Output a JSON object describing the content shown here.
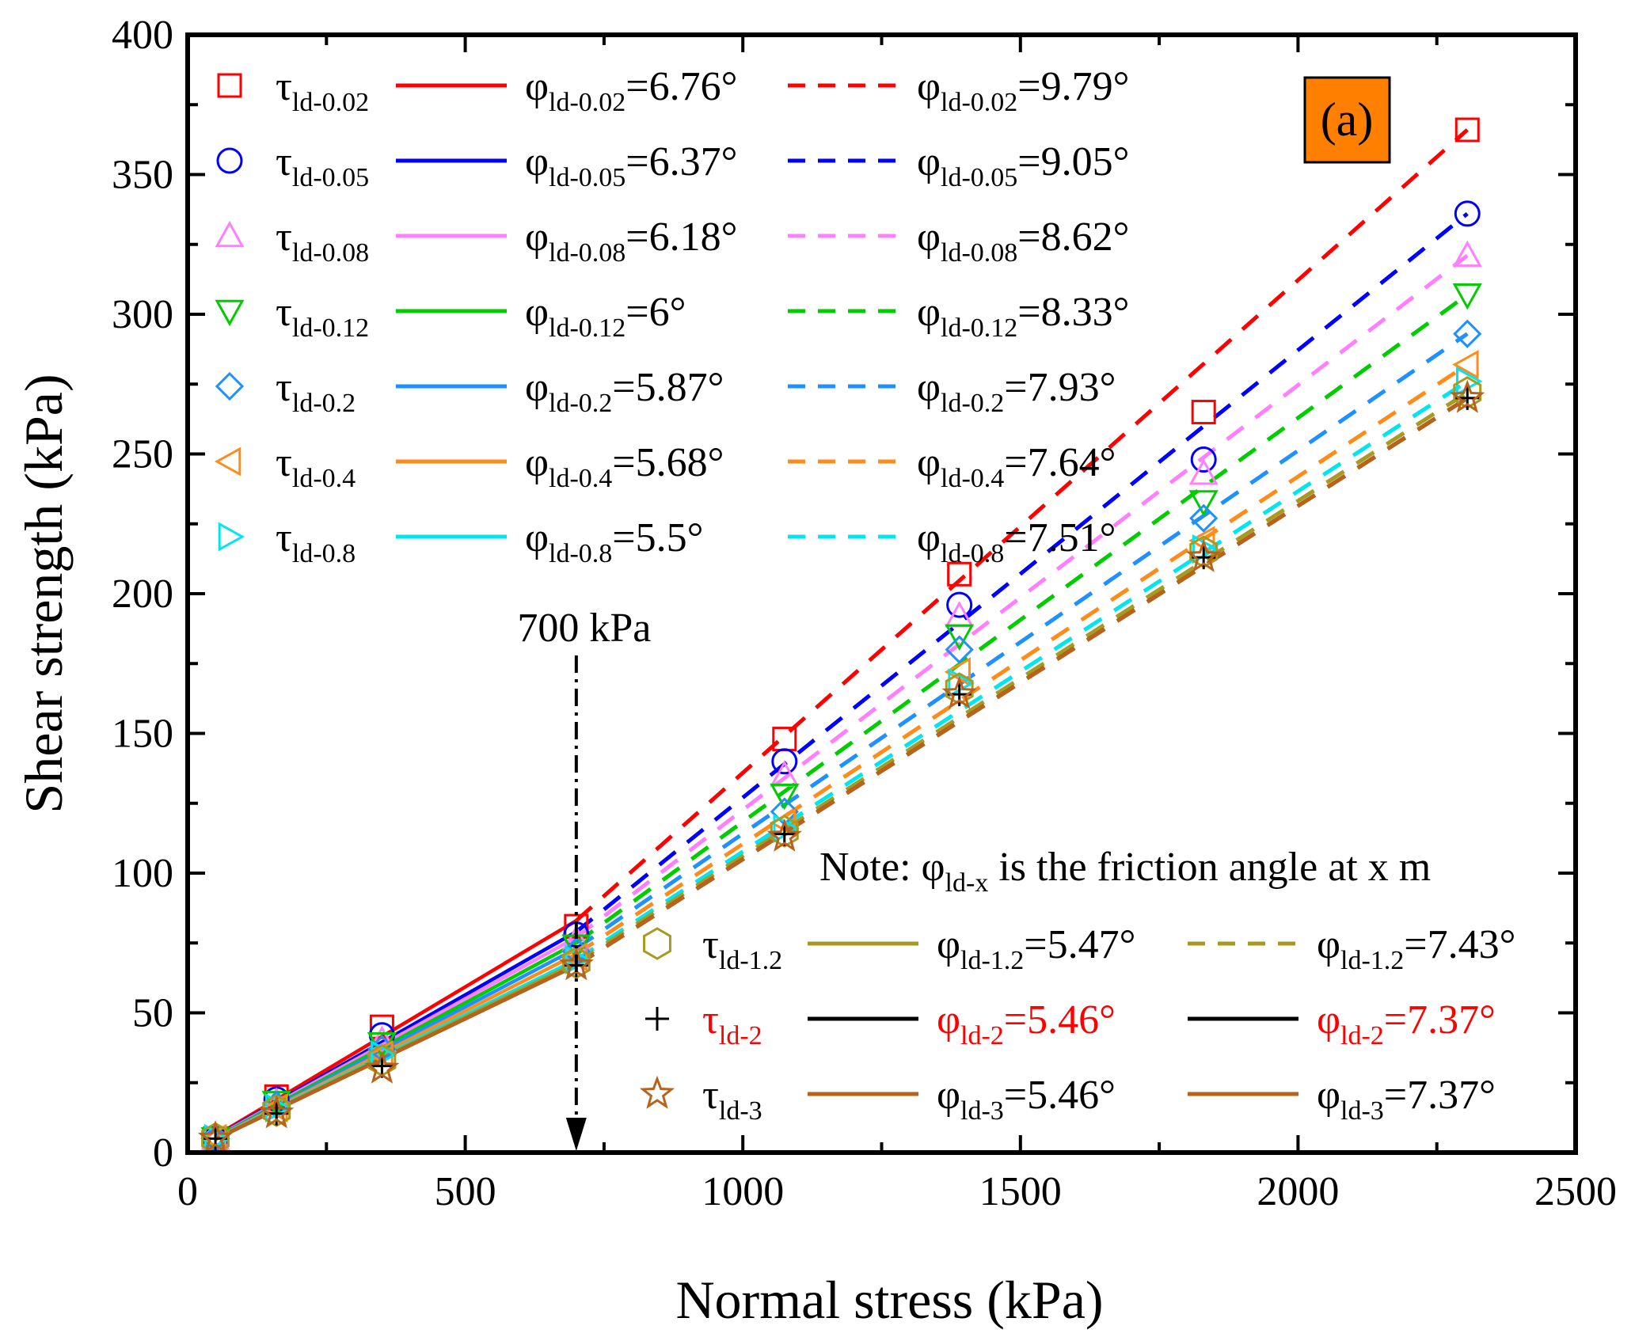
{
  "chart_data": {
    "type": "scatter",
    "panel_label": "(a)",
    "xlabel": "Normal stress (kPa)",
    "ylabel": "Shear strength (kPa)",
    "xlim": [
      0,
      2500
    ],
    "ylim": [
      0,
      400
    ],
    "x_ticks": [
      "0",
      "500",
      "1000",
      "1500",
      "2000",
      "2500"
    ],
    "y_ticks": [
      "0",
      "50",
      "100",
      "150",
      "200",
      "250",
      "300",
      "350",
      "400"
    ],
    "annotation": {
      "text": "700 kPa",
      "x": 700
    },
    "note": {
      "prefix": "Note: φ",
      "sub": "ld-x",
      "suffix": " is the friction angle at x m"
    },
    "x": [
      50,
      160,
      350,
      700,
      1075,
      1390,
      1830,
      2305
    ],
    "series": [
      {
        "name": "τld-0.02",
        "tau": "τ",
        "sub": "ld-0.02",
        "color": "#ff0000",
        "marker": "square",
        "values": [
          5,
          20,
          45,
          81,
          148,
          207,
          265,
          366
        ],
        "phi1": {
          "label": "=6.76°",
          "sub": "ld-0.02",
          "deg": 6.76,
          "y700": 83
        },
        "phi2": {
          "label": "=9.79°",
          "sub": "ld-0.02",
          "deg": 9.79
        }
      },
      {
        "name": "τld-0.05",
        "tau": "τ",
        "sub": "ld-0.05",
        "color": "#0000ff",
        "marker": "circle",
        "values": [
          5,
          19,
          42,
          78,
          140,
          196,
          248,
          336
        ],
        "phi1": {
          "label": "=6.37°",
          "sub": "ld-0.05",
          "deg": 6.37,
          "y700": 79
        },
        "phi2": {
          "label": "=9.05°",
          "sub": "ld-0.05",
          "deg": 9.05
        }
      },
      {
        "name": "τld-0.08",
        "tau": "τ",
        "sub": "ld-0.08",
        "color": "#ff7fff",
        "marker": "triangle-up",
        "values": [
          5,
          18,
          40,
          76,
          135,
          192,
          243,
          321
        ],
        "phi1": {
          "label": "=6.18°",
          "sub": "ld-0.08",
          "deg": 6.18,
          "y700": 77
        },
        "phi2": {
          "label": "=8.62°",
          "sub": "ld-0.08",
          "deg": 8.62
        }
      },
      {
        "name": "τld-0.12",
        "tau": "τ",
        "sub": "ld-0.12",
        "color": "#00cc00",
        "marker": "triangle-down",
        "values": [
          5,
          18,
          39,
          74,
          128,
          185,
          233,
          307
        ],
        "phi1": {
          "label": "=6°",
          "sub": "ld-0.12",
          "deg": 6.0,
          "y700": 75
        },
        "phi2": {
          "label": "=8.33°",
          "sub": "ld-0.12",
          "deg": 8.33
        }
      },
      {
        "name": "τld-0.2",
        "tau": "τ",
        "sub": "ld-0.2",
        "color": "#1e90ff",
        "marker": "diamond",
        "values": [
          5,
          17,
          37,
          72,
          122,
          180,
          227,
          293
        ],
        "phi1": {
          "label": "=5.87°",
          "sub": "ld-0.2",
          "deg": 5.87,
          "y700": 73
        },
        "phi2": {
          "label": "=7.93°",
          "sub": "ld-0.2",
          "deg": 7.93
        }
      },
      {
        "name": "τld-0.4",
        "tau": "τ",
        "sub": "ld-0.4",
        "color": "#ff8c1a",
        "marker": "triangle-left",
        "values": [
          5,
          16,
          35,
          70,
          118,
          172,
          219,
          282
        ],
        "phi1": {
          "label": "=5.68°",
          "sub": "ld-0.4",
          "deg": 5.68,
          "y700": 71
        },
        "phi2": {
          "label": "=7.64°",
          "sub": "ld-0.4",
          "deg": 7.64
        }
      },
      {
        "name": "τld-0.8",
        "tau": "τ",
        "sub": "ld-0.8",
        "color": "#00e5ee",
        "marker": "triangle-right",
        "values": [
          5,
          16,
          35,
          69,
          116,
          168,
          216,
          276
        ],
        "phi1": {
          "label": "=5.5°",
          "sub": "ld-0.8",
          "deg": 5.5,
          "y700": 69
        },
        "phi2": {
          "label": "=7.51°",
          "sub": "ld-0.8",
          "deg": 7.51
        }
      },
      {
        "name": "τld-1.2",
        "tau": "τ",
        "sub": "ld-1.2",
        "color": "#a89a20",
        "marker": "hexagon",
        "values": [
          5,
          15,
          33,
          68,
          115,
          166,
          215,
          272
        ],
        "phi1": {
          "label": "=5.47°",
          "sub": "ld-1.2",
          "deg": 5.47,
          "y700": 68
        },
        "phi2": {
          "label": "=7.43°",
          "sub": "ld-1.2",
          "deg": 7.43
        }
      },
      {
        "name": "τld-2",
        "tau": "τ",
        "sub": "ld-2",
        "color": "#000000",
        "marker": "plus",
        "label_color": "#ff0000",
        "values": [
          5,
          14,
          31,
          67,
          114,
          164,
          213,
          270
        ],
        "phi1": {
          "label": "=5.46°",
          "sub": "ld-2",
          "deg": 5.46,
          "y700": 67
        },
        "phi2": {
          "label": "=7.37°",
          "sub": "ld-2",
          "deg": 7.37
        }
      },
      {
        "name": "τld-3",
        "tau": "τ",
        "sub": "ld-3",
        "color": "#b8621b",
        "marker": "star",
        "values": [
          5,
          14,
          30,
          67,
          113,
          164,
          213,
          270
        ],
        "phi1": {
          "label": "=5.46°",
          "sub": "ld-3",
          "deg": 5.46,
          "y700": 67
        },
        "phi2": {
          "label": "=7.37°",
          "sub": "ld-3",
          "deg": 7.37
        }
      }
    ]
  },
  "colors": {
    "panel_label_bg": "#ff7f00",
    "axis": "#000000",
    "background": "#ffffff"
  }
}
